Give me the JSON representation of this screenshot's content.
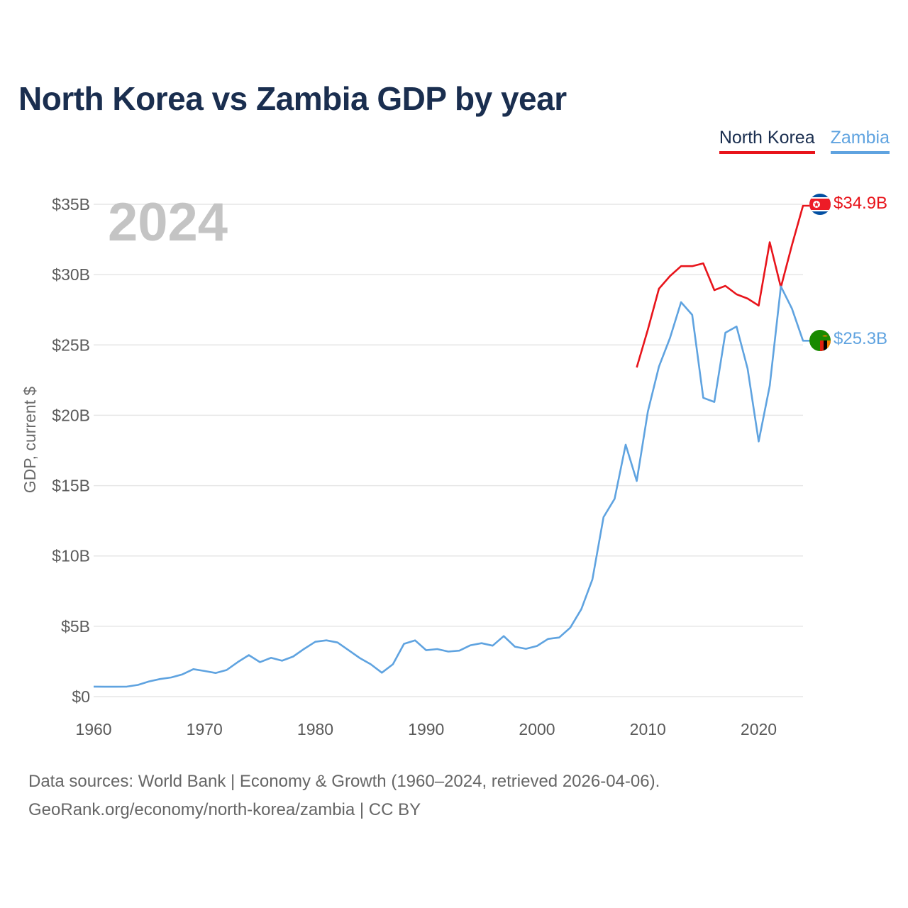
{
  "title": "North Korea vs Zambia GDP by year",
  "legend": {
    "north_korea": "North Korea",
    "zambia": "Zambia"
  },
  "year_display": "2024",
  "source_line1": "Data sources: World Bank | Economy & Growth (1960–2024, retrieved 2026-04-06).",
  "source_line2": "GeoRank.org/economy/north-korea/zambia | CC BY",
  "colors": {
    "north_korea": "#e8141b",
    "zambia": "#5fa3e0",
    "title": "#1a2e4f",
    "grid": "#e6e6e6"
  },
  "chart_data": {
    "type": "line",
    "title": "North Korea vs Zambia GDP by year",
    "xlabel": "",
    "ylabel": "GDP, current $",
    "xlim": [
      1960,
      2024
    ],
    "ylim": [
      0,
      35
    ],
    "y_ticks": [
      0,
      5,
      10,
      15,
      20,
      25,
      30,
      35
    ],
    "y_tick_labels": [
      "$0",
      "$5B",
      "$10B",
      "$15B",
      "$20B",
      "$25B",
      "$30B",
      "$35B"
    ],
    "x_ticks": [
      1960,
      1970,
      1980,
      1990,
      2000,
      2010,
      2020
    ],
    "x_tick_labels": [
      "1960",
      "1970",
      "1980",
      "1990",
      "2000",
      "2010",
      "2020"
    ],
    "grid": true,
    "legend_position": "top-right",
    "series": [
      {
        "name": "North Korea",
        "x": [
          2009,
          2010,
          2011,
          2012,
          2013,
          2014,
          2015,
          2016,
          2017,
          2018,
          2019,
          2020,
          2021,
          2022,
          2023,
          2024
        ],
        "values": [
          23.4,
          26.1,
          29.0,
          29.9,
          30.6,
          30.6,
          30.8,
          28.9,
          29.2,
          28.6,
          28.3,
          27.8,
          32.3,
          29.1,
          32.1,
          34.9
        ],
        "end_label": "$34.9B"
      },
      {
        "name": "Zambia",
        "x": [
          1960,
          1961,
          1962,
          1963,
          1964,
          1965,
          1966,
          1967,
          1968,
          1969,
          1970,
          1971,
          1972,
          1973,
          1974,
          1975,
          1976,
          1977,
          1978,
          1979,
          1980,
          1981,
          1982,
          1983,
          1984,
          1985,
          1986,
          1987,
          1988,
          1989,
          1990,
          1991,
          1992,
          1993,
          1994,
          1995,
          1996,
          1997,
          1998,
          1999,
          2000,
          2001,
          2002,
          2003,
          2004,
          2005,
          2006,
          2007,
          2008,
          2009,
          2010,
          2011,
          2012,
          2013,
          2014,
          2015,
          2016,
          2017,
          2018,
          2019,
          2020,
          2021,
          2022,
          2023,
          2024
        ],
        "values": [
          0.71,
          0.7,
          0.7,
          0.71,
          0.83,
          1.08,
          1.25,
          1.36,
          1.58,
          1.95,
          1.82,
          1.68,
          1.89,
          2.45,
          2.95,
          2.45,
          2.76,
          2.55,
          2.85,
          3.4,
          3.9,
          4.0,
          3.85,
          3.3,
          2.75,
          2.3,
          1.7,
          2.3,
          3.75,
          4.0,
          3.3,
          3.38,
          3.2,
          3.27,
          3.65,
          3.8,
          3.62,
          4.3,
          3.55,
          3.4,
          3.6,
          4.1,
          4.2,
          4.9,
          6.22,
          8.33,
          12.76,
          14.06,
          17.91,
          15.33,
          20.27,
          23.46,
          25.5,
          28.04,
          27.14,
          21.24,
          20.95,
          25.87,
          26.31,
          23.31,
          18.14,
          22.1,
          29.16,
          27.58,
          25.3
        ],
        "end_label": "$25.3B"
      }
    ]
  }
}
